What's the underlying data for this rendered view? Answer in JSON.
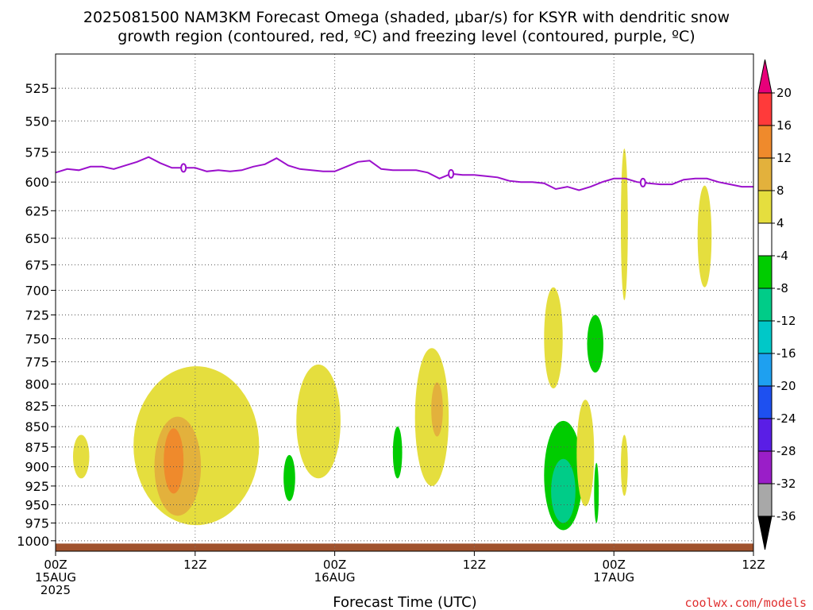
{
  "chart_data": {
    "type": "heatmap",
    "title_lines": [
      "2025081500 NAM3KM Forecast Omega (shaded, μbar/s) for KSYR with dendritic snow",
      "growth region (contoured, red, ºC) and freezing level (contoured, purple, ºC)"
    ],
    "xlabel": "Forecast Time (UTC)",
    "x_range_hours": [
      0,
      60
    ],
    "x_ticks": [
      {
        "hour": 0,
        "lines": [
          "00Z",
          "15AUG",
          "2025"
        ]
      },
      {
        "hour": 12,
        "lines": [
          "12Z"
        ]
      },
      {
        "hour": 24,
        "lines": [
          "00Z",
          "16AUG"
        ]
      },
      {
        "hour": 36,
        "lines": [
          "12Z"
        ]
      },
      {
        "hour": 48,
        "lines": [
          "00Z",
          "17AUG"
        ]
      },
      {
        "hour": 60,
        "lines": [
          "12Z"
        ]
      }
    ],
    "y_axis": {
      "scale": "log-pressure",
      "range_hpa": [
        1015,
        500
      ],
      "ticks": [
        525,
        550,
        575,
        600,
        625,
        650,
        675,
        700,
        725,
        750,
        775,
        800,
        825,
        850,
        875,
        900,
        925,
        950,
        975,
        1000
      ],
      "grid": "dotted"
    },
    "colorbar": {
      "levels": [
        "20",
        "16",
        "12",
        "8",
        "4",
        "-4",
        "-8",
        "-12",
        "-16",
        "-20",
        "-24",
        "-28",
        "-32",
        "-36"
      ],
      "colors": [
        "#e8007a",
        "#ff3a3a",
        "#ef8a2c",
        "#e3b13c",
        "#e5de3e",
        "#ffffff",
        "#00cc00",
        "#00cc88",
        "#00c8c8",
        "#1ea0f0",
        "#1e50f0",
        "#5a1ee6",
        "#9a1ec8",
        "#a8a8a8",
        "#000000"
      ]
    },
    "freezing_level": {
      "color": "#9b10cc",
      "contour_label": "0",
      "points": [
        [
          0,
          592
        ],
        [
          1,
          589
        ],
        [
          2,
          590
        ],
        [
          3,
          587
        ],
        [
          4,
          587
        ],
        [
          5,
          589
        ],
        [
          6,
          586
        ],
        [
          7,
          583
        ],
        [
          8,
          579
        ],
        [
          9,
          584
        ],
        [
          10,
          588
        ],
        [
          11,
          588
        ],
        [
          12,
          588
        ],
        [
          13,
          591
        ],
        [
          14,
          590
        ],
        [
          15,
          591
        ],
        [
          16,
          590
        ],
        [
          17,
          587
        ],
        [
          18,
          585
        ],
        [
          19,
          580
        ],
        [
          20,
          586
        ],
        [
          21,
          589
        ],
        [
          22,
          590
        ],
        [
          23,
          591
        ],
        [
          24,
          591
        ],
        [
          25,
          587
        ],
        [
          26,
          583
        ],
        [
          27,
          582
        ],
        [
          28,
          589
        ],
        [
          29,
          590
        ],
        [
          30,
          590
        ],
        [
          31,
          590
        ],
        [
          32,
          592
        ],
        [
          33,
          597
        ],
        [
          34,
          593
        ],
        [
          35,
          594
        ],
        [
          36,
          594
        ],
        [
          37,
          595
        ],
        [
          38,
          596
        ],
        [
          39,
          599
        ],
        [
          40,
          600
        ],
        [
          41,
          600
        ],
        [
          42,
          601
        ],
        [
          43,
          606
        ],
        [
          44,
          604
        ],
        [
          45,
          607
        ],
        [
          46,
          604
        ],
        [
          47,
          600
        ],
        [
          48,
          597
        ],
        [
          49,
          597
        ],
        [
          50,
          600
        ],
        [
          51,
          601
        ],
        [
          52,
          602
        ],
        [
          53,
          602
        ],
        [
          54,
          598
        ],
        [
          55,
          597
        ],
        [
          56,
          597
        ],
        [
          57,
          600
        ],
        [
          58,
          602
        ],
        [
          59,
          604
        ],
        [
          60,
          604
        ]
      ],
      "label_hours": [
        11,
        34,
        50.5
      ]
    },
    "omega_regions": [
      {
        "level": "4",
        "hours": [
          1.5,
          2.9
        ],
        "p": [
          860,
          915
        ]
      },
      {
        "level": "4",
        "hours": [
          6.7,
          17.5
        ],
        "p": [
          780,
          978
        ]
      },
      {
        "level": "8",
        "hours": [
          8.5,
          12.5
        ],
        "p": [
          838,
          965
        ]
      },
      {
        "level": "12",
        "hours": [
          9.3,
          11.0
        ],
        "p": [
          852,
          935
        ]
      },
      {
        "level": "-4",
        "hours": [
          19.6,
          20.6
        ],
        "p": [
          885,
          945
        ]
      },
      {
        "level": "4",
        "hours": [
          20.7,
          24.5
        ],
        "p": [
          778,
          915
        ]
      },
      {
        "level": "-4",
        "hours": [
          29.0,
          29.8
        ],
        "p": [
          850,
          915
        ]
      },
      {
        "level": "4",
        "hours": [
          30.9,
          33.8
        ],
        "p": [
          760,
          925
        ]
      },
      {
        "level": "8",
        "hours": [
          32.3,
          33.3
        ],
        "p": [
          798,
          862
        ]
      },
      {
        "level": "4",
        "hours": [
          42.0,
          43.6
        ],
        "p": [
          697,
          805
        ]
      },
      {
        "level": "-4",
        "hours": [
          42.0,
          45.3
        ],
        "p": [
          843,
          985
        ]
      },
      {
        "level": "-8",
        "hours": [
          42.6,
          44.7
        ],
        "p": [
          890,
          975
        ]
      },
      {
        "level": "4",
        "hours": [
          44.8,
          46.3
        ],
        "p": [
          818,
          952
        ]
      },
      {
        "level": "-4",
        "hours": [
          45.7,
          47.1
        ],
        "p": [
          725,
          787
        ]
      },
      {
        "level": "-4",
        "hours": [
          46.3,
          46.7
        ],
        "p": [
          895,
          975
        ]
      },
      {
        "level": "4",
        "hours": [
          48.6,
          49.2
        ],
        "p": [
          572,
          710
        ]
      },
      {
        "level": "4",
        "hours": [
          48.6,
          49.2
        ],
        "p": [
          860,
          938
        ]
      },
      {
        "level": "4",
        "hours": [
          55.2,
          56.4
        ],
        "p": [
          603,
          697
        ]
      }
    ],
    "terrain": {
      "color": "#a0522d",
      "surface_hpa": 1004
    },
    "grid": true
  },
  "credit": "coolwx.com/models"
}
